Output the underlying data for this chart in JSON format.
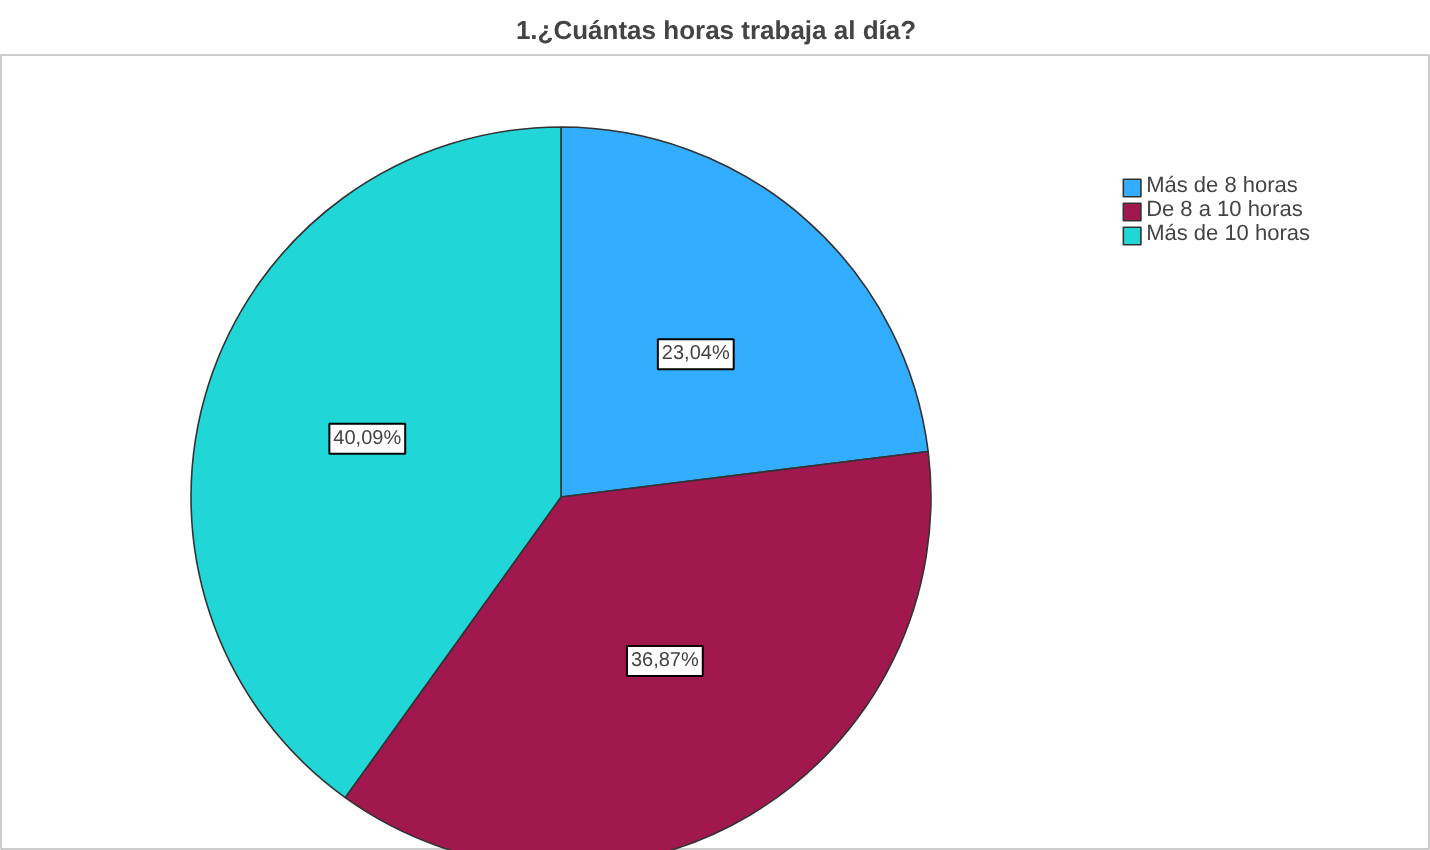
{
  "chart_data": {
    "type": "pie",
    "title": "1.¿Cuántas horas trabaja al día?",
    "categories": [
      "Más de 8 horas",
      "De 8 a 10 horas",
      "Más de 10 horas"
    ],
    "values": [
      23.04,
      36.87,
      40.09
    ],
    "colors": [
      "#33adff",
      "#a0184e",
      "#21d6d6"
    ],
    "value_labels": [
      "23,04%",
      "36,87%",
      "40,09%"
    ],
    "legend": "top right"
  }
}
